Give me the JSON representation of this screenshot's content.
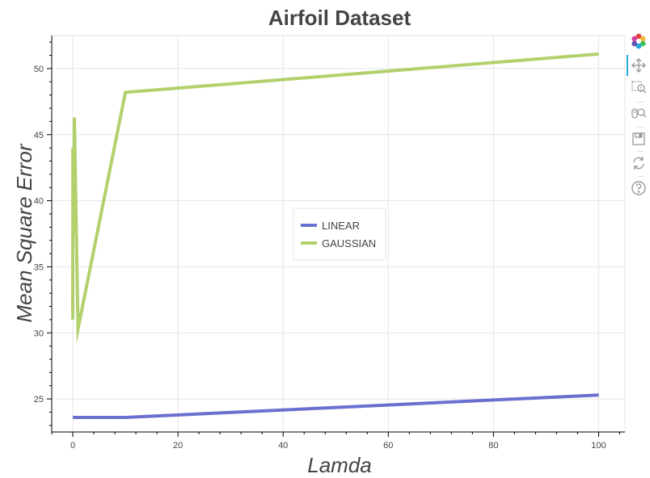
{
  "chart_data": {
    "type": "line",
    "title": "Airfoil Dataset",
    "xlabel": "Lamda",
    "ylabel": "Mean Square Error",
    "xlim": [
      -4,
      105
    ],
    "ylim": [
      22.5,
      52.5
    ],
    "x_ticks": [
      0,
      20,
      40,
      60,
      80,
      100
    ],
    "y_ticks": [
      25,
      30,
      35,
      40,
      45,
      50
    ],
    "grid": true,
    "legend_position": "center",
    "series": [
      {
        "name": "LINEAR",
        "color": "#6b6fcf",
        "x": [
          0,
          0.01,
          0.1,
          0.3,
          1,
          10,
          100
        ],
        "y": [
          23.6,
          23.6,
          23.6,
          23.6,
          23.6,
          23.6,
          25.3
        ]
      },
      {
        "name": "GAUSSIAN",
        "color": "#b1d16d",
        "x": [
          0,
          0.01,
          0.1,
          0.3,
          1,
          10,
          100
        ],
        "y": [
          31.0,
          44.0,
          37.5,
          46.3,
          30.3,
          48.2,
          51.1
        ]
      }
    ]
  },
  "toolbar": {
    "tools": [
      {
        "name": "bokeh-logo-icon",
        "interactable": true
      },
      {
        "name": "pan-tool-icon",
        "interactable": true,
        "active": true
      },
      {
        "name": "box-zoom-tool-icon",
        "interactable": true
      },
      {
        "name": "wheel-zoom-tool-icon",
        "interactable": true
      },
      {
        "name": "save-tool-icon",
        "interactable": true
      },
      {
        "name": "reset-tool-icon",
        "interactable": true
      },
      {
        "name": "help-tool-icon",
        "interactable": true
      }
    ]
  }
}
